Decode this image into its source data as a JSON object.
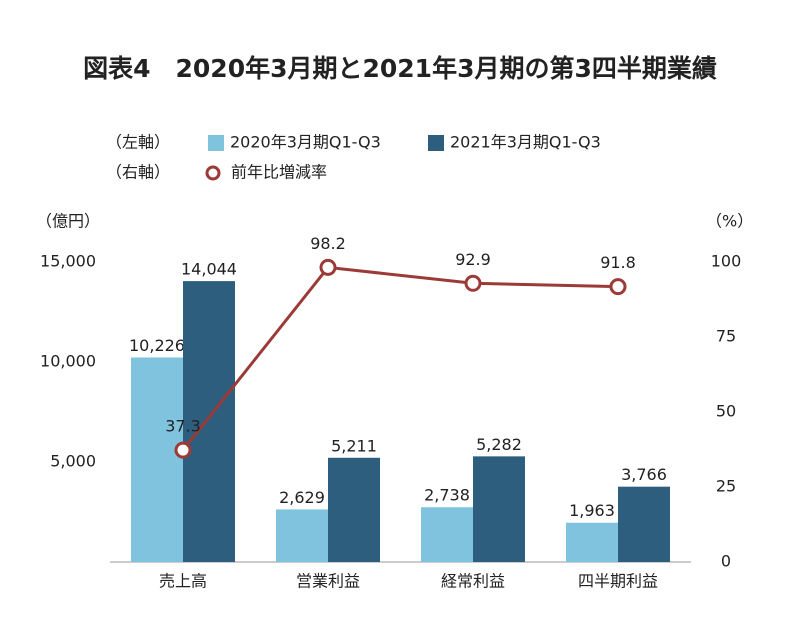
{
  "chart_data": {
    "type": "bar",
    "title": "図表4　2020年3月期と2021年3月期の第3四半期業績",
    "left_axis_legend_label": "（左軸）",
    "right_axis_legend_label": "（右軸）",
    "y_label": "（億円）",
    "y2_label": "（%）",
    "categories": [
      "売上高",
      "営業利益",
      "経常利益",
      "四半期利益"
    ],
    "series": [
      {
        "name": "2020年3月期Q1-Q3",
        "color": "#80c3df",
        "values": [
          10226,
          2629,
          2738,
          1963
        ],
        "value_labels": [
          "10,226",
          "2,629",
          "2,738",
          "1,963"
        ]
      },
      {
        "name": "2021年3月期Q1-Q3",
        "color": "#2e5e7e",
        "values": [
          14044,
          5211,
          5282,
          3766
        ],
        "value_labels": [
          "14,044",
          "5,211",
          "5,282",
          "3,766"
        ]
      },
      {
        "name": "前年比増減率",
        "type": "line",
        "axis": "y2",
        "color": "#9b3a36",
        "values": [
          37.3,
          98.2,
          92.9,
          91.8
        ]
      }
    ],
    "ylim": [
      0,
      15000
    ],
    "yticks": [
      {
        "value": 5000,
        "label": "5,000"
      },
      {
        "value": 10000,
        "label": "10,000"
      },
      {
        "value": 15000,
        "label": "15,000"
      }
    ],
    "y2lim": [
      0,
      100
    ],
    "y2ticks": [
      0,
      25,
      50,
      75,
      100
    ],
    "grid": false
  }
}
